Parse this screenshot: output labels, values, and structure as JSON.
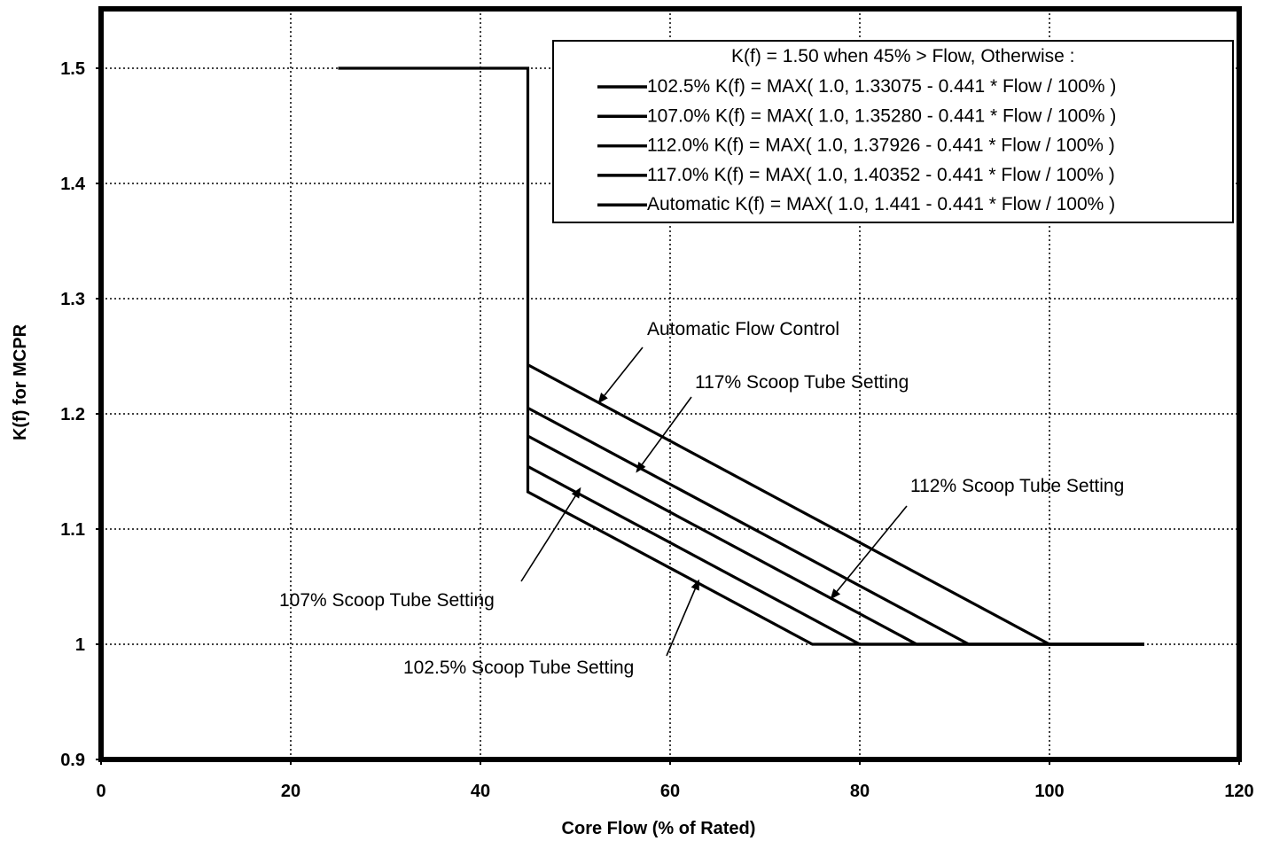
{
  "chart_data": {
    "type": "line",
    "title": "",
    "xlabel": "Core Flow (% of Rated)",
    "ylabel": "K(f) for MCPR",
    "xlim": [
      0,
      120
    ],
    "ylim": [
      0.9,
      1.55
    ],
    "x_ticks": [
      0,
      20,
      40,
      60,
      80,
      100,
      120
    ],
    "y_ticks": [
      0.9,
      1,
      1.1,
      1.2,
      1.3,
      1.4,
      1.5
    ],
    "x_tick_labels": [
      "0",
      "20",
      "40",
      "60",
      "80",
      "100",
      "120"
    ],
    "y_tick_labels": [
      "0.9",
      "1",
      "1.1",
      "1.2",
      "1.3",
      "1.4",
      "1.5"
    ],
    "grid": true,
    "colors": {
      "line": "#000000",
      "grid": "#000000",
      "background": "#ffffff"
    },
    "series": [
      {
        "legend": "102.5%  K(f) = MAX( 1.0, 1.33075 - 0.441 * Flow / 100% )",
        "points": [
          [
            25,
            1.5
          ],
          [
            45,
            1.5
          ],
          [
            45,
            1.1323
          ],
          [
            75.0,
            1.0
          ],
          [
            110,
            1.0
          ]
        ]
      },
      {
        "legend": "107.0%  K(f) = MAX( 1.0, 1.35280 - 0.441 * Flow / 100% )",
        "points": [
          [
            45,
            1.1543
          ],
          [
            80.0,
            1.0
          ],
          [
            110,
            1.0
          ]
        ]
      },
      {
        "legend": "112.0%  K(f) = MAX( 1.0, 1.37926 - 0.441 * Flow / 100% )",
        "points": [
          [
            45,
            1.1808
          ],
          [
            86.0,
            1.0
          ],
          [
            110,
            1.0
          ]
        ]
      },
      {
        "legend": "117.0%  K(f) = MAX( 1.0, 1.40352 - 0.441 * Flow / 100% )",
        "points": [
          [
            45,
            1.2051
          ],
          [
            91.5,
            1.0
          ],
          [
            110,
            1.0
          ]
        ]
      },
      {
        "legend": "Automatic  K(f) = MAX( 1.0, 1.441 - 0.441 * Flow / 100% )",
        "points": [
          [
            45,
            1.2426
          ],
          [
            100,
            1.0
          ],
          [
            110,
            1.0
          ]
        ]
      }
    ],
    "legend_header": "K(f) = 1.50  when  45% > Flow,    Otherwise :",
    "legend_position": "top-right",
    "annotations": [
      {
        "text": "Automatic Flow Control",
        "arrow_to": [
          52.5,
          1.21
        ]
      },
      {
        "text": "117% Scoop Tube Setting",
        "arrow_to": [
          56.5,
          1.15
        ]
      },
      {
        "text": "112% Scoop Tube Setting",
        "arrow_to": [
          77,
          1.04
        ]
      },
      {
        "text": "107% Scoop Tube Setting",
        "arrow_to": [
          50.5,
          1.135
        ]
      },
      {
        "text": "102.5% Scoop Tube Setting",
        "arrow_to": [
          63,
          1.055
        ]
      }
    ]
  }
}
